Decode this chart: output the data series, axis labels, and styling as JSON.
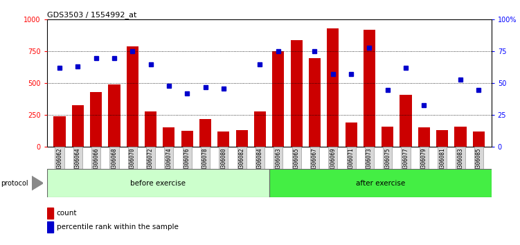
{
  "title": "GDS3503 / 1554992_at",
  "categories": [
    "GSM306062",
    "GSM306064",
    "GSM306066",
    "GSM306068",
    "GSM306070",
    "GSM306072",
    "GSM306074",
    "GSM306076",
    "GSM306078",
    "GSM306080",
    "GSM306082",
    "GSM306084",
    "GSM306063",
    "GSM306065",
    "GSM306067",
    "GSM306069",
    "GSM306071",
    "GSM306073",
    "GSM306075",
    "GSM306077",
    "GSM306079",
    "GSM306081",
    "GSM306083",
    "GSM306085"
  ],
  "counts": [
    240,
    330,
    430,
    490,
    790,
    280,
    155,
    125,
    220,
    120,
    130,
    280,
    750,
    840,
    700,
    930,
    190,
    920,
    160,
    410,
    155,
    130,
    160,
    120
  ],
  "percentile_ranks": [
    62,
    63,
    70,
    70,
    75,
    65,
    48,
    42,
    47,
    46,
    null,
    65,
    75,
    null,
    75,
    57,
    57,
    78,
    45,
    62,
    33,
    null,
    53,
    45
  ],
  "before_count": 12,
  "after_count": 12,
  "bar_color": "#cc0000",
  "dot_color": "#0000cc",
  "before_color": "#ccffcc",
  "after_color": "#44ee44",
  "ylim_left": [
    0,
    1000
  ],
  "ylim_right": [
    0,
    100
  ],
  "yticks_left": [
    0,
    250,
    500,
    750,
    1000
  ],
  "yticks_right": [
    0,
    25,
    50,
    75,
    100
  ],
  "protocol_label": "protocol",
  "before_label": "before exercise",
  "after_label": "after exercise",
  "legend_count": "count",
  "legend_pct": "percentile rank within the sample"
}
